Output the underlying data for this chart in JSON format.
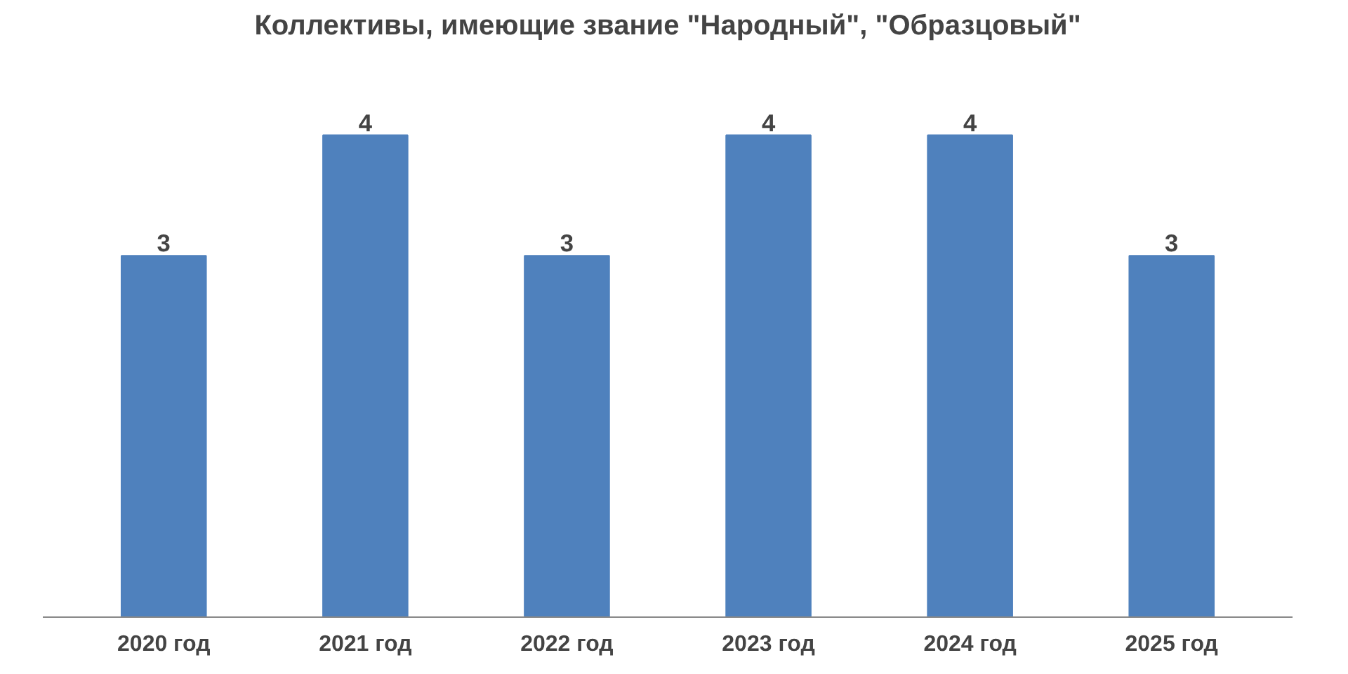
{
  "chart_data": {
    "type": "bar",
    "title": "Коллективы, имеющие звание \"Народный\", \"Образцовый\"",
    "categories": [
      "2020 год",
      "2021 год",
      "2022 год",
      "2023 год",
      "2024 год",
      "2025 год"
    ],
    "values": [
      3,
      4,
      3,
      4,
      4,
      3
    ],
    "color": "#4f81bd",
    "data_labels": true,
    "tick_labels": "x",
    "grid": false
  }
}
